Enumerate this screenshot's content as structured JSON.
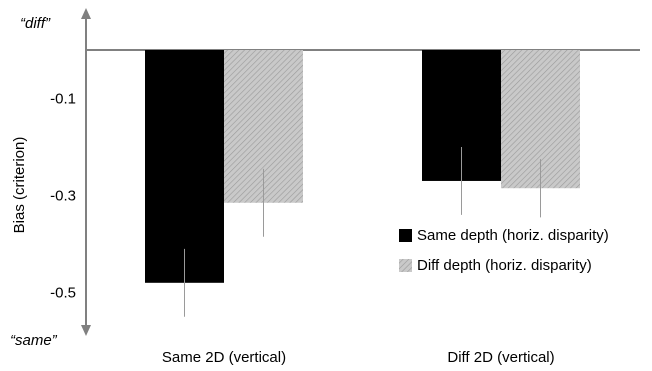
{
  "chart_data": {
    "type": "bar",
    "title": "",
    "xlabel": "",
    "ylabel": "Bias (criterion)",
    "y_top_label": "“diff”",
    "y_bottom_label": "“same”",
    "ylim": [
      -0.6,
      0.0
    ],
    "y_ticks": [
      -0.1,
      -0.3,
      -0.5
    ],
    "y_tick_labels": [
      "-0.1",
      "-0.3",
      "-0.5"
    ],
    "grid": false,
    "legend_position": "lower-right",
    "categories": [
      "Same 2D (vertical)",
      "Diff 2D (vertical)"
    ],
    "series": [
      {
        "name": "Same depth (horiz. disparity)",
        "color": "#000000",
        "pattern": "solid",
        "values": [
          -0.48,
          -0.27
        ],
        "error": [
          0.07,
          0.07
        ]
      },
      {
        "name": "Diff depth (horiz. disparity)",
        "color": "#bdbdbd",
        "pattern": "hatched",
        "values": [
          -0.315,
          -0.285
        ],
        "error": [
          0.07,
          0.06
        ]
      }
    ]
  }
}
